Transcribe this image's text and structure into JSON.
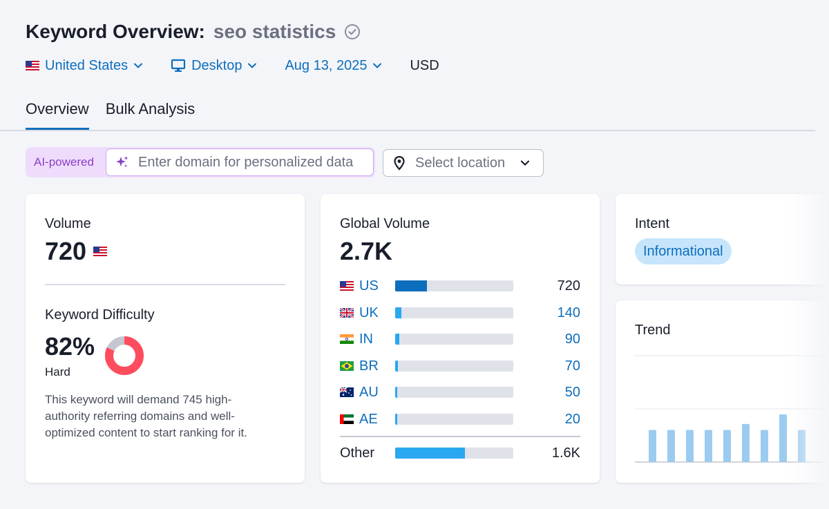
{
  "header": {
    "title": "Keyword Overview:",
    "keyword": "seo statistics"
  },
  "filters": {
    "country": "United States",
    "device": "Desktop",
    "date": "Aug 13, 2025",
    "currency": "USD"
  },
  "tabs": [
    {
      "label": "Overview",
      "active": true
    },
    {
      "label": "Bulk Analysis",
      "active": false
    }
  ],
  "ai": {
    "label": "AI-powered",
    "placeholder": "Enter domain for personalized data"
  },
  "location": {
    "placeholder": "Select location"
  },
  "volume": {
    "label": "Volume",
    "value": "720"
  },
  "difficulty": {
    "label": "Keyword Difficulty",
    "value": "82%",
    "percent": 82,
    "level": "Hard",
    "description": "This keyword will demand 745 high-authority referring domains and well-optimized content to start ranking for it."
  },
  "global_volume": {
    "label": "Global Volume",
    "value": "2.7K",
    "countries": [
      {
        "code": "US",
        "value": "720",
        "share": 0.27
      },
      {
        "code": "UK",
        "value": "140",
        "share": 0.05
      },
      {
        "code": "IN",
        "value": "90",
        "share": 0.035
      },
      {
        "code": "BR",
        "value": "70",
        "share": 0.025
      },
      {
        "code": "AU",
        "value": "50",
        "share": 0.02
      },
      {
        "code": "AE",
        "value": "20",
        "share": 0.02
      }
    ],
    "other": {
      "label": "Other",
      "value": "1.6K",
      "share": 0.59
    }
  },
  "intent": {
    "label": "Intent",
    "value": "Informational"
  },
  "trend": {
    "label": "Trend",
    "bars": [
      0.6,
      0.6,
      0.6,
      0.6,
      0.6,
      0.71,
      0.6,
      0.89,
      0.6
    ]
  },
  "colors": {
    "accent": "#0d6ebd",
    "kd_fill": "#ff4d5e",
    "kd_track": "#c4c7cf",
    "trend_bar": "#9ccbf0"
  }
}
